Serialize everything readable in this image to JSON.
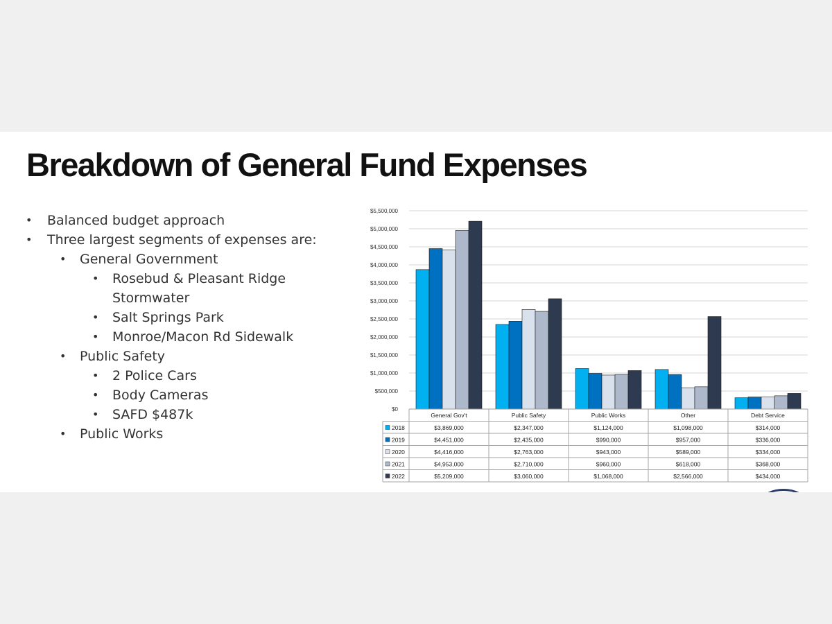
{
  "slide": {
    "title": "Breakdown of General Fund Expenses",
    "bullets": [
      {
        "level": 1,
        "text": "Balanced budget approach"
      },
      {
        "level": 1,
        "text": "Three largest segments of expenses are:"
      },
      {
        "level": 2,
        "text": "General Government"
      },
      {
        "level": 3,
        "text": "Rosebud & Pleasant Ridge Stormwater"
      },
      {
        "level": 3,
        "text": "Salt Springs Park"
      },
      {
        "level": 3,
        "text": "Monroe/Macon Rd Sidewalk"
      },
      {
        "level": 2,
        "text": "Public Safety"
      },
      {
        "level": 3,
        "text": "2 Police Cars"
      },
      {
        "level": 3,
        "text": "Body Cameras"
      },
      {
        "level": 3,
        "text": "SAFD $487k"
      },
      {
        "level": 2,
        "text": "Public Works"
      }
    ]
  },
  "chart_data": {
    "type": "bar",
    "categories": [
      "General Gov't",
      "Public Safety",
      "Public Works",
      "Other",
      "Debt Service"
    ],
    "series": [
      {
        "name": "2018",
        "color": "#00b0f0",
        "values": [
          3869000,
          2347000,
          1124000,
          1098000,
          314000
        ],
        "labels": [
          "$3,869,000",
          "$2,347,000",
          "$1,124,000",
          "$1,098,000",
          "$314,000"
        ]
      },
      {
        "name": "2019",
        "color": "#0070c0",
        "values": [
          4451000,
          2435000,
          990000,
          957000,
          336000
        ],
        "labels": [
          "$4,451,000",
          "$2,435,000",
          "$990,000",
          "$957,000",
          "$336,000"
        ]
      },
      {
        "name": "2020",
        "color": "#d9e1ec",
        "values": [
          4416000,
          2763000,
          943000,
          589000,
          334000
        ],
        "labels": [
          "$4,416,000",
          "$2,763,000",
          "$943,000",
          "$589,000",
          "$334,000"
        ]
      },
      {
        "name": "2021",
        "color": "#adb9ca",
        "values": [
          4953000,
          2710000,
          960000,
          618000,
          368000
        ],
        "labels": [
          "$4,953,000",
          "$2,710,000",
          "$960,000",
          "$618,000",
          "$368,000"
        ]
      },
      {
        "name": "2022",
        "color": "#2e3a50",
        "values": [
          5209000,
          3060000,
          1068000,
          2566000,
          434000
        ],
        "labels": [
          "$5,209,000",
          "$3,060,000",
          "$1,068,000",
          "$2,566,000",
          "$434,000"
        ]
      }
    ],
    "ylim": [
      0,
      5500000
    ],
    "yticks": [
      "$0",
      "$500,000",
      "$1,000,000",
      "$1,500,000",
      "$2,000,000",
      "$2,500,000",
      "$3,000,000",
      "$3,500,000",
      "$4,000,000",
      "$4,500,000",
      "$5,000,000",
      "$5,500,000"
    ],
    "grid": true,
    "legend": "data table below chart"
  }
}
